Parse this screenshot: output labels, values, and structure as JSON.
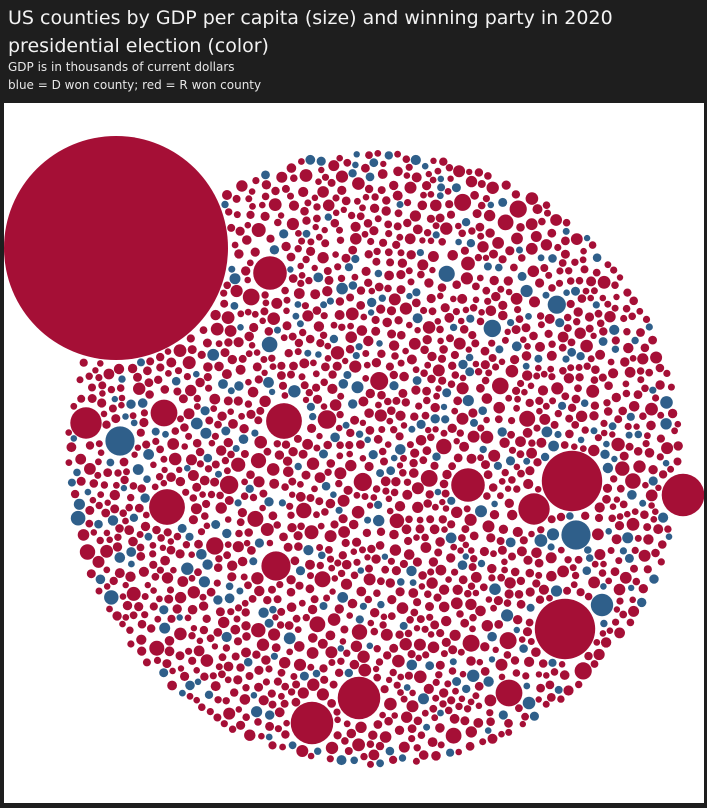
{
  "header": {
    "title": "US counties by GDP per capita (size) and winning party in 2020 presidential election (color)",
    "subtitle_1": "GDP is in thousands of current dollars",
    "subtitle_2": "blue = D won county; red = R won county"
  },
  "chart_data": {
    "type": "packed-bubble",
    "title": "US counties by GDP per capita (size) and winning party in 2020 presidential election (color)",
    "subtitle": "GDP is in thousands of current dollars",
    "color_key": "blue = D won county; red = R won county",
    "colors": {
      "D": "#2f5f8a",
      "R": "#a50f36",
      "background": "#ffffff"
    },
    "estimated_total_counties": 3100,
    "estimated_share_D": 0.17,
    "notable_bubbles": [
      {
        "party": "R",
        "relative_size": 1.0
      },
      {
        "party": "R",
        "relative_size": 0.27
      },
      {
        "party": "R",
        "relative_size": 0.27
      },
      {
        "party": "R",
        "relative_size": 0.19
      },
      {
        "party": "R",
        "relative_size": 0.19
      },
      {
        "party": "R",
        "relative_size": 0.19
      },
      {
        "party": "R",
        "relative_size": 0.16
      },
      {
        "party": "R",
        "relative_size": 0.16
      },
      {
        "party": "R",
        "relative_size": 0.15
      },
      {
        "party": "R",
        "relative_size": 0.15
      },
      {
        "party": "R",
        "relative_size": 0.14
      },
      {
        "party": "R",
        "relative_size": 0.14
      },
      {
        "party": "D",
        "relative_size": 0.13
      },
      {
        "party": "D",
        "relative_size": 0.13
      },
      {
        "party": "R",
        "relative_size": 0.13
      },
      {
        "party": "R",
        "relative_size": 0.12
      },
      {
        "party": "R",
        "relative_size": 0.12
      },
      {
        "party": "D",
        "relative_size": 0.1
      }
    ]
  }
}
